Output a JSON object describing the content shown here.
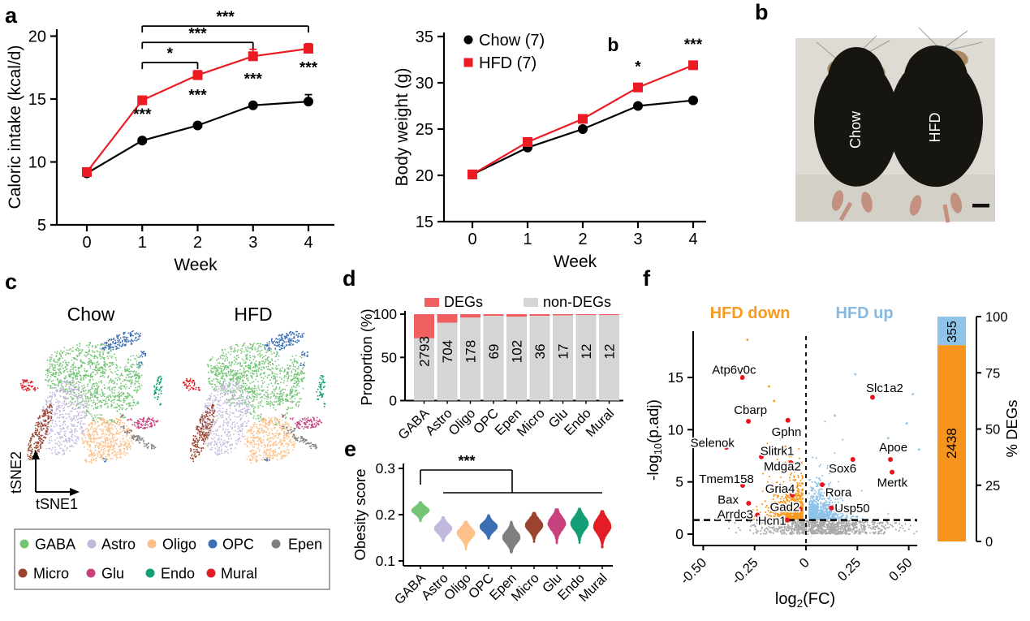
{
  "figure": {
    "panel_labels": {
      "a": "a",
      "b": "b",
      "c": "c",
      "d": "d",
      "e": "e",
      "f": "f"
    }
  },
  "colors": {
    "chow_black": "#000000",
    "hfd_red": "#ec1b23",
    "deg_red": "#f16060",
    "nondeg_gray": "#d5d5d5",
    "volcano_orange": "#f79a20",
    "volcano_blue": "#8fc3e8",
    "volcano_gray": "#a9a9a9",
    "highlight_red": "#e8141c",
    "hfd_down_title": "#f79a20",
    "hfd_up_title": "#85bbe3",
    "photo_bg": "#dedbd4",
    "mouse_black": "#17150f",
    "ear_tan": "#a98a62",
    "paw_pink": "#c4907f"
  },
  "cell_types": [
    {
      "name": "GABA",
      "color": "#74c476"
    },
    {
      "name": "Astro",
      "color": "#c2b8dc"
    },
    {
      "name": "Oligo",
      "color": "#fdc088"
    },
    {
      "name": "OPC",
      "color": "#3a6fb4"
    },
    {
      "name": "Epen",
      "color": "#7f7f7f"
    },
    {
      "name": "Micro",
      "color": "#9a442f"
    },
    {
      "name": "Glu",
      "color": "#c9417e"
    },
    {
      "name": "Endo",
      "color": "#149e78"
    },
    {
      "name": "Mural",
      "color": "#e21d25"
    }
  ],
  "panel_b": {
    "left_mouse_label": "Chow",
    "right_mouse_label": "HFD"
  },
  "panel_c": {
    "titles": [
      "Chow",
      "HFD"
    ],
    "xlabel": "tSNE1",
    "ylabel": "tSNE2",
    "clusters": [
      {
        "name": "GABA",
        "color": "#74c476",
        "blobs": [
          [
            100,
            115,
            45,
            22,
            -10,
            330
          ],
          [
            130,
            140,
            45,
            25,
            5,
            330
          ],
          [
            75,
            135,
            20,
            18,
            0,
            120
          ],
          [
            105,
            160,
            28,
            14,
            8,
            130
          ],
          [
            150,
            165,
            22,
            12,
            -5,
            90
          ],
          [
            165,
            125,
            12,
            18,
            0,
            70
          ],
          [
            120,
            185,
            8,
            5,
            0,
            18
          ],
          [
            138,
            190,
            7,
            4,
            0,
            14
          ],
          [
            152,
            182,
            5,
            4,
            0,
            10
          ],
          [
            108,
            178,
            6,
            4,
            0,
            10
          ]
        ]
      },
      {
        "name": "Astro",
        "color": "#c2b8dc",
        "blobs": [
          [
            78,
            185,
            29,
            47,
            12,
            520
          ]
        ]
      },
      {
        "name": "Oligo",
        "color": "#fdc088",
        "blobs": [
          [
            133,
            211,
            32,
            27,
            0,
            470
          ],
          [
            112,
            235,
            8,
            6,
            0,
            25
          ]
        ]
      },
      {
        "name": "OPC",
        "color": "#3a6fb4",
        "blobs": [
          [
            150,
            90,
            26,
            9,
            -20,
            150
          ],
          [
            176,
            106,
            5,
            4,
            0,
            14
          ],
          [
            173,
            119,
            3.5,
            4.5,
            0,
            8
          ],
          [
            129,
            236,
            3,
            3,
            0,
            6
          ]
        ]
      },
      {
        "name": "Epen",
        "color": "#7f7f7f",
        "blobs": [
          [
            158,
            201,
            7,
            3,
            -30,
            16
          ],
          [
            170,
            211,
            11,
            4,
            25,
            38
          ],
          [
            184,
            219,
            8,
            3.5,
            15,
            22
          ],
          [
            151,
            196,
            3,
            2,
            0,
            5
          ]
        ]
      },
      {
        "name": "Micro",
        "color": "#9a442f",
        "blobs": [
          [
            49,
            203,
            9,
            38,
            20,
            230
          ]
        ]
      },
      {
        "name": "Glu",
        "color": "#c9417e",
        "blobs": [
          [
            180,
            191,
            17,
            7,
            -8,
            90
          ],
          [
            160,
            187,
            3,
            2.5,
            0,
            5
          ],
          [
            150,
            182,
            2,
            2,
            0,
            3
          ]
        ]
      },
      {
        "name": "Endo",
        "color": "#149e78",
        "blobs": [
          [
            195,
            148,
            5,
            16,
            8,
            50
          ],
          [
            199,
            169,
            2,
            2,
            0,
            4
          ]
        ]
      },
      {
        "name": "Mural",
        "color": "#e21d25",
        "blobs": [
          [
            33,
            144,
            8,
            8,
            0,
            48
          ],
          [
            44,
            149,
            3,
            2.5,
            0,
            7
          ]
        ]
      }
    ]
  },
  "chart_data": [
    {
      "id": "caloric_intake",
      "type": "line",
      "xlabel": "Week",
      "ylabel": "Caloric intake (kcal/d)",
      "x": [
        0,
        1,
        2,
        3,
        4
      ],
      "yticks": [
        5,
        10,
        15,
        20
      ],
      "ylim": [
        5,
        20
      ],
      "series": [
        {
          "name": "Chow",
          "color": "#000000",
          "marker": "circle",
          "values": [
            9.1,
            11.7,
            12.9,
            14.5,
            14.8
          ],
          "err": [
            0,
            0,
            0,
            0,
            0.55
          ]
        },
        {
          "name": "HFD",
          "color": "#ec1b23",
          "marker": "square",
          "values": [
            9.2,
            14.9,
            16.9,
            18.4,
            19.0
          ],
          "err": [
            0,
            0.3,
            0.35,
            0.55,
            0.4
          ]
        }
      ],
      "sig_points": [
        {
          "x": 1,
          "y": 13.4,
          "text": "***"
        },
        {
          "x": 2,
          "y": 14.9,
          "text": "***"
        },
        {
          "x": 3,
          "y": 16.2,
          "text": "***"
        },
        {
          "x": 4,
          "y": 17.1,
          "text": "***"
        }
      ],
      "sig_brackets": [
        {
          "x1": 1,
          "x2": 2,
          "y": 17.9,
          "text": "*"
        },
        {
          "x1": 1,
          "x2": 3,
          "y": 19.5,
          "text": "***"
        },
        {
          "x1": 1,
          "x2": 4,
          "y": 20.8,
          "text": "***"
        }
      ]
    },
    {
      "id": "body_weight",
      "type": "line",
      "xlabel": "Week",
      "ylabel": "Body weight (g)",
      "x": [
        0,
        1,
        2,
        3,
        4
      ],
      "yticks": [
        15,
        20,
        25,
        30,
        35
      ],
      "ylim": [
        15,
        35
      ],
      "legend": [
        "Chow (7)",
        "HFD (7)"
      ],
      "series": [
        {
          "name": "Chow (7)",
          "color": "#000000",
          "marker": "circle",
          "values": [
            20.1,
            23.0,
            25.0,
            27.5,
            28.1
          ],
          "err": [
            0,
            0,
            0,
            0,
            0
          ]
        },
        {
          "name": "HFD (7)",
          "color": "#ec1b23",
          "marker": "square",
          "values": [
            20.1,
            23.6,
            26.1,
            29.5,
            31.9
          ],
          "err": [
            0,
            0,
            0,
            0,
            0
          ]
        }
      ],
      "sig_points": [
        {
          "x": 3,
          "y": 31.2,
          "text": "*"
        },
        {
          "x": 4,
          "y": 33.6,
          "text": "***"
        }
      ],
      "extra_annotations": [
        {
          "x": 2.55,
          "y": 33.4,
          "text": "b"
        }
      ]
    },
    {
      "id": "deg_proportion",
      "type": "bar",
      "ylabel": "Proportion (%)",
      "yticks": [
        0,
        50,
        100
      ],
      "categories": [
        "GABA",
        "Astro",
        "Oligo",
        "OPC",
        "Epen",
        "Micro",
        "Glu",
        "Endo",
        "Mural"
      ],
      "deg_counts": [
        2793,
        704,
        178,
        69,
        102,
        36,
        17,
        12,
        12
      ],
      "deg_pct": [
        28,
        10,
        4,
        2,
        3,
        2,
        1.5,
        1.2,
        1.2
      ],
      "legend": [
        {
          "label": "DEGs",
          "color": "#f16060"
        },
        {
          "label": "non-DEGs",
          "color": "#d5d5d5"
        }
      ]
    },
    {
      "id": "obesity_score",
      "type": "violin",
      "ylabel": "Obesity score",
      "yticks": [
        0.1,
        0.2,
        0.3
      ],
      "ylim": [
        0.1,
        0.3
      ],
      "sig_text": "***",
      "violins": [
        {
          "name": "GABA",
          "center": 0.209,
          "min": 0.185,
          "max": 0.228
        },
        {
          "name": "Astro",
          "center": 0.17,
          "min": 0.142,
          "max": 0.196
        },
        {
          "name": "Oligo",
          "center": 0.16,
          "min": 0.124,
          "max": 0.186
        },
        {
          "name": "OPC",
          "center": 0.174,
          "min": 0.147,
          "max": 0.2
        },
        {
          "name": "Epen",
          "center": 0.151,
          "min": 0.117,
          "max": 0.186
        },
        {
          "name": "Micro",
          "center": 0.177,
          "min": 0.14,
          "max": 0.205
        },
        {
          "name": "Glu",
          "center": 0.181,
          "min": 0.137,
          "max": 0.213
        },
        {
          "name": "Endo",
          "center": 0.181,
          "min": 0.138,
          "max": 0.214
        },
        {
          "name": "Mural",
          "center": 0.175,
          "min": 0.128,
          "max": 0.209
        }
      ]
    },
    {
      "id": "volcano",
      "type": "scatter",
      "title_down": "HFD down",
      "title_up": "HFD up",
      "xlabel": "log2(FC)",
      "ylabel": "-log10(p.adj)",
      "xticks": [
        {
          "v": -0.5,
          "label": "-0.50"
        },
        {
          "v": -0.25,
          "label": "-0.25"
        },
        {
          "v": 0,
          "label": "0"
        },
        {
          "v": 0.25,
          "label": "0.25"
        },
        {
          "v": 0.5,
          "label": "0.50"
        }
      ],
      "yticks": [
        0,
        5,
        10,
        15
      ],
      "threshold": 1.35,
      "genes_down": [
        {
          "name": "Atp6v0c",
          "x": -0.31,
          "y": 15.0
        },
        {
          "name": "Cbarp",
          "x": -0.28,
          "y": 10.8
        },
        {
          "name": "Gphn",
          "x": -0.088,
          "y": 10.9
        },
        {
          "name": "Selenok",
          "x": -0.387,
          "y": 8.3
        },
        {
          "name": "Slitrk1",
          "x": -0.217,
          "y": 7.4
        },
        {
          "name": "Mdga2",
          "x": -0.073,
          "y": 6.84
        },
        {
          "name": "Tmem158",
          "x": -0.308,
          "y": 4.66
        },
        {
          "name": "Gria4",
          "x": -0.067,
          "y": 3.73
        },
        {
          "name": "Bax",
          "x": -0.279,
          "y": 2.95
        },
        {
          "name": "Gad2",
          "x": -0.029,
          "y": 2.39
        },
        {
          "name": "Arrdc3",
          "x": -0.236,
          "y": 1.84
        },
        {
          "name": "Hcn1",
          "x": -0.091,
          "y": 1.35
        }
      ],
      "genes_up": [
        {
          "name": "Slc1a2",
          "x": 0.324,
          "y": 13.1
        },
        {
          "name": "Apoe",
          "x": 0.411,
          "y": 7.15
        },
        {
          "name": "Sox6",
          "x": 0.228,
          "y": 7.15
        },
        {
          "name": "Mertk",
          "x": 0.419,
          "y": 5.93
        },
        {
          "name": "Rora",
          "x": 0.079,
          "y": 4.74
        },
        {
          "name": "Usp50",
          "x": 0.124,
          "y": 2.51
        }
      ]
    },
    {
      "id": "deg_percent",
      "type": "bar",
      "label": "% DEGs",
      "ticks": [
        0,
        25,
        50,
        75,
        100
      ],
      "up_count": 355,
      "down_count": 2438,
      "up_color": "#8fc3e8",
      "down_color": "#f7941d"
    }
  ]
}
